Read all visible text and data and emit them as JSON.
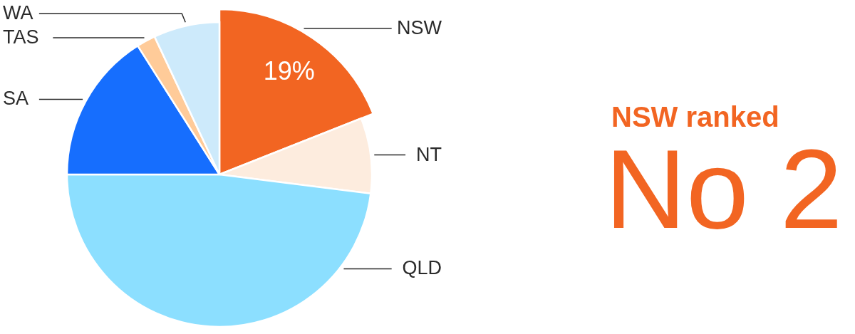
{
  "chart_data": {
    "type": "pie",
    "categories": [
      "NSW",
      "NT",
      "QLD",
      "SA",
      "TAS",
      "WA"
    ],
    "values": [
      19,
      8,
      48,
      16,
      2,
      7
    ],
    "colors": [
      "#f26522",
      "#fdecde",
      "#8cdfff",
      "#166efe",
      "#ffcb99",
      "#cdeafb"
    ],
    "value_labels": [
      "19%",
      null,
      null,
      null,
      null,
      null
    ],
    "annotations": [
      "NSW ranked",
      "No 2"
    ]
  }
}
